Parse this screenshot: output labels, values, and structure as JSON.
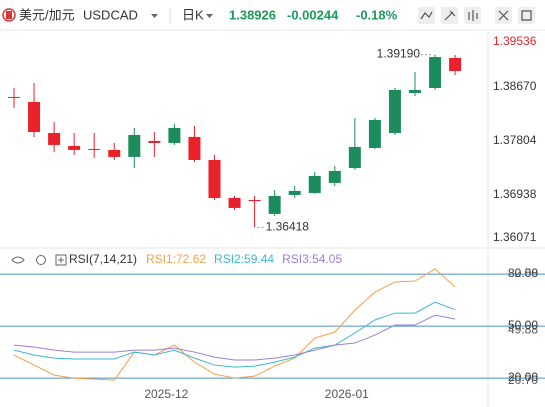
{
  "header": {
    "symbol_name": "美元/加元",
    "symbol": "USDCAD",
    "period": "日K",
    "last": 1.38926,
    "change": -0.00244,
    "change_pct": "-0.18%",
    "color": "#1a9a5c"
  },
  "chart_data": [
    {
      "type": "candlestick",
      "categories": [
        null,
        null,
        null,
        null,
        null,
        null,
        null,
        "2025-12",
        null,
        null,
        null,
        null,
        null,
        null,
        null,
        null,
        "2026-01",
        null,
        null,
        null,
        null,
        null,
        null
      ],
      "open": [
        1.3851,
        1.3843,
        1.37932,
        1.37724,
        1.37676,
        1.3766,
        1.37548,
        1.37804,
        1.37772,
        1.37868,
        1.37499,
        1.3689,
        1.36858,
        1.36634,
        1.36938,
        1.3697,
        1.37131,
        1.37371,
        1.37692,
        1.37932,
        1.38574,
        1.38654,
        1.39135
      ],
      "high": [
        1.38654,
        1.38734,
        1.38109,
        1.37932,
        1.37932,
        1.37772,
        1.38013,
        1.37948,
        1.38077,
        1.38045,
        1.3758,
        1.36922,
        1.36922,
        1.37018,
        1.37083,
        1.37307,
        1.37403,
        1.38173,
        1.38173,
        1.38654,
        1.38911,
        1.3919,
        1.39183
      ],
      "low": [
        1.38333,
        1.37868,
        1.37628,
        1.3758,
        1.37532,
        1.37499,
        1.37371,
        1.37548,
        1.3774,
        1.37467,
        1.36858,
        1.36698,
        1.36418,
        1.36602,
        1.3689,
        1.36954,
        1.37083,
        1.37339,
        1.37676,
        1.379,
        1.38526,
        1.38622,
        1.38862
      ],
      "close": [
        1.38494,
        1.37948,
        1.3774,
        1.3766,
        1.3767,
        1.37548,
        1.379,
        1.37772,
        1.38013,
        1.37499,
        1.3689,
        1.3673,
        1.3684,
        1.36922,
        1.37002,
        1.37243,
        1.37323,
        1.37708,
        1.38141,
        1.38622,
        1.38622,
        1.3915,
        1.38926
      ],
      "up_color": "#1d8c5c",
      "down_color": "#e8212a",
      "high_label": "1.39190",
      "low_label": "1.36418",
      "ylim": [
        1.36071,
        1.39536
      ],
      "yticks": [
        1.39536,
        {
          "value": 1.3867,
          "label": "1.38670"
        },
        1.37804,
        1.36938,
        1.36071
      ],
      "ytick_colors": [
        "#e8212a",
        "#333333",
        "#333333",
        "#333333",
        "#333333"
      ]
    },
    {
      "type": "line",
      "title": "RSI(7,14,21)",
      "series": [
        {
          "name": "RSI1:72.62",
          "color": "#f5a04a",
          "values": [
            33.3,
            27.5,
            21.7,
            20.0,
            19.4,
            18.8,
            35.0,
            33.3,
            39.0,
            29.2,
            22.3,
            20.0,
            21.1,
            26.9,
            31.5,
            43.1,
            46.5,
            59.2,
            69.6,
            75.4,
            76.0,
            83.0,
            72.62
          ]
        },
        {
          "name": "RSI2:59.44",
          "color": "#3bb8d0",
          "values": [
            36.1,
            33.3,
            31.5,
            31.0,
            31.0,
            31.0,
            35.0,
            33.3,
            36.1,
            31.5,
            27.5,
            26.3,
            26.9,
            29.2,
            32.1,
            37.3,
            39.0,
            46.0,
            53.5,
            57.5,
            57.5,
            63.8,
            59.44
          ]
        },
        {
          "name": "RSI3:54.05",
          "color": "#9b7fd4",
          "values": [
            39.0,
            37.9,
            36.1,
            35.0,
            35.0,
            35.0,
            36.1,
            36.1,
            37.3,
            35.0,
            32.1,
            30.4,
            30.4,
            31.5,
            33.3,
            36.1,
            39.0,
            40.2,
            44.8,
            50.6,
            50.6,
            56.3,
            54.05
          ]
        }
      ],
      "ylim": [
        16,
        83.5
      ],
      "yticks": [
        {
          "value": 80,
          "label": "80.00"
        },
        {
          "value": 50,
          "label": "50.00"
        },
        {
          "value": 20,
          "label": "20.00"
        }
      ],
      "side_labels": [
        {
          "value": 82.58,
          "label": "82.58"
        },
        {
          "value": 49.88,
          "label": "49.88"
        },
        {
          "value": 20.7,
          "label": "20.70"
        }
      ],
      "grid_color": "#4a90c8"
    }
  ]
}
